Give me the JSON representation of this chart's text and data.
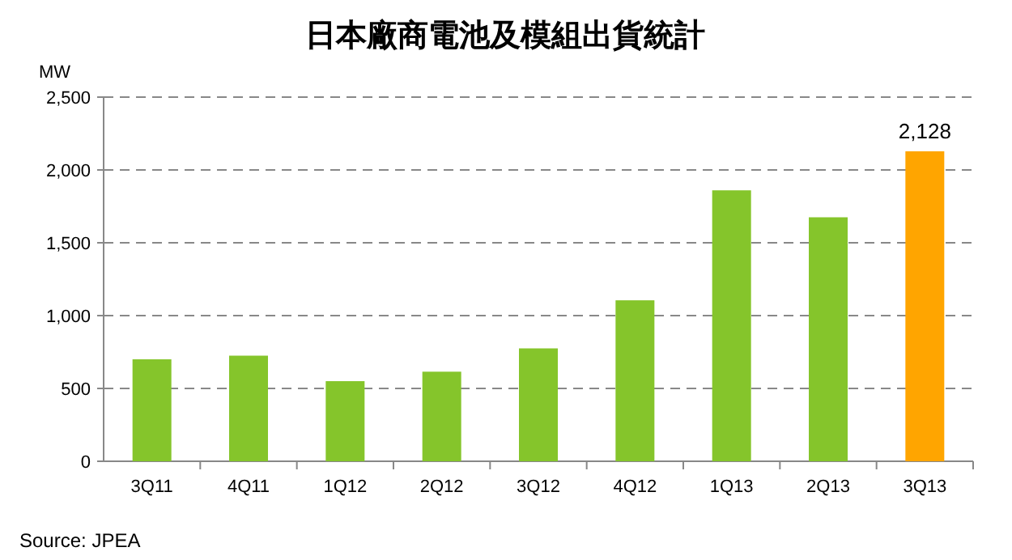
{
  "chart_data": {
    "type": "bar",
    "title": "日本廠商電池及模組出貨統計",
    "ylabel": "MW",
    "categories": [
      "3Q11",
      "4Q11",
      "1Q12",
      "2Q12",
      "3Q12",
      "4Q12",
      "1Q13",
      "2Q13",
      "3Q13"
    ],
    "values": [
      700,
      725,
      550,
      615,
      775,
      1105,
      1860,
      1675,
      2128
    ],
    "colors": [
      "#85c52b",
      "#85c52b",
      "#85c52b",
      "#85c52b",
      "#85c52b",
      "#85c52b",
      "#85c52b",
      "#85c52b",
      "#ffa500"
    ],
    "value_labels": [
      null,
      null,
      null,
      null,
      null,
      null,
      null,
      null,
      "2,128"
    ],
    "ylim": [
      0,
      2500
    ],
    "yticks": [
      {
        "value": 0,
        "label": "0"
      },
      {
        "value": 500,
        "label": "500"
      },
      {
        "value": 1000,
        "label": "1,000"
      },
      {
        "value": 1500,
        "label": "1,500"
      },
      {
        "value": 2000,
        "label": "2,000"
      },
      {
        "value": 2500,
        "label": "2,500"
      }
    ],
    "grid": "y",
    "annotations": [
      "Source: JPEA"
    ]
  }
}
